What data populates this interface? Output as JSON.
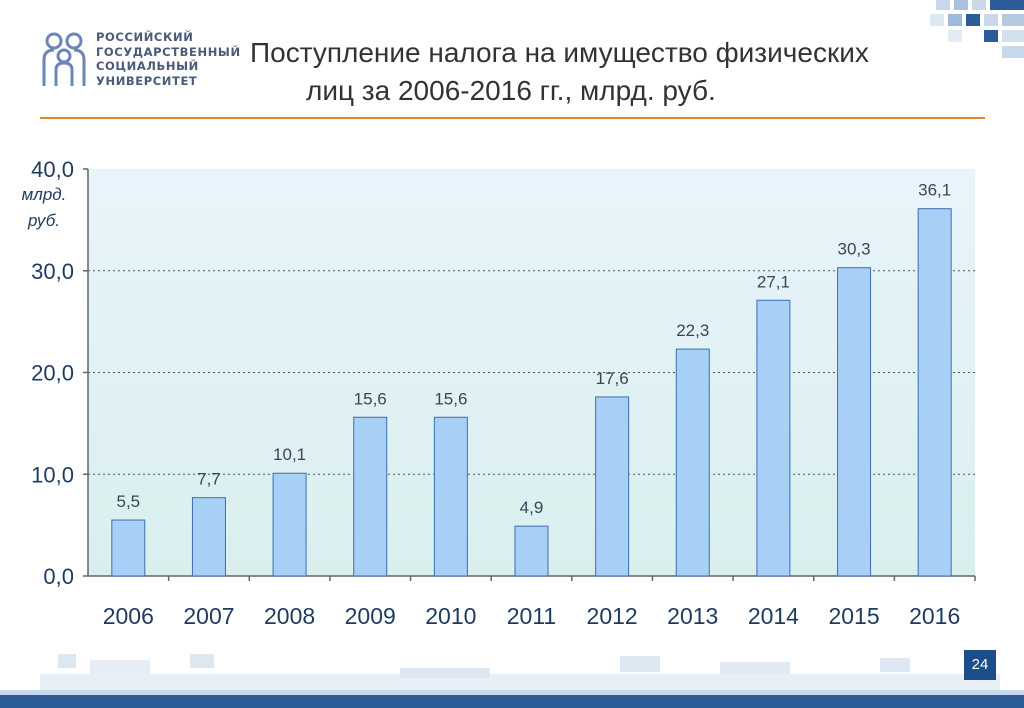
{
  "header": {
    "logo_lines": [
      "РОССИЙСКИЙ",
      "ГОСУДАРСТВЕННЫЙ",
      "СОЦИАЛЬНЫЙ",
      "УНИВЕРСИТЕТ"
    ],
    "title_line1": "Поступление налога на имущество физических",
    "title_line2": "лиц за 2006-2016 гг., млрд. руб."
  },
  "chart_data": {
    "type": "bar",
    "title": "Поступление налога на имущество физических лиц за 2006-2016 гг., млрд. руб.",
    "categories": [
      "2006",
      "2007",
      "2008",
      "2009",
      "2010",
      "2011",
      "2012",
      "2013",
      "2014",
      "2015",
      "2016"
    ],
    "values": [
      5.5,
      7.7,
      10.1,
      15.6,
      15.6,
      4.9,
      17.6,
      22.3,
      27.1,
      30.3,
      36.1
    ],
    "value_labels": [
      "5,5",
      "7,7",
      "10,1",
      "15,6",
      "15,6",
      "4,9",
      "17,6",
      "22,3",
      "27,1",
      "30,3",
      "36,1"
    ],
    "yticks": [
      0,
      10,
      20,
      30,
      40
    ],
    "ytick_labels": [
      "0,0",
      "10,0",
      "20,0",
      "30,0",
      "40,0"
    ],
    "ylabel_lines": [
      "млрд.",
      "руб."
    ],
    "xlabel": "",
    "ylim": [
      0,
      40
    ],
    "grid": true,
    "colors": {
      "bar": "#a8cff5",
      "bar_stroke": "#3c6fb0",
      "plot_bg_top": "#e8f4fb",
      "plot_bg_bottom": "#d9efee",
      "axis_text": "#1f3a5f",
      "grid": "#555555"
    }
  },
  "footer": {
    "page_number": "24"
  }
}
